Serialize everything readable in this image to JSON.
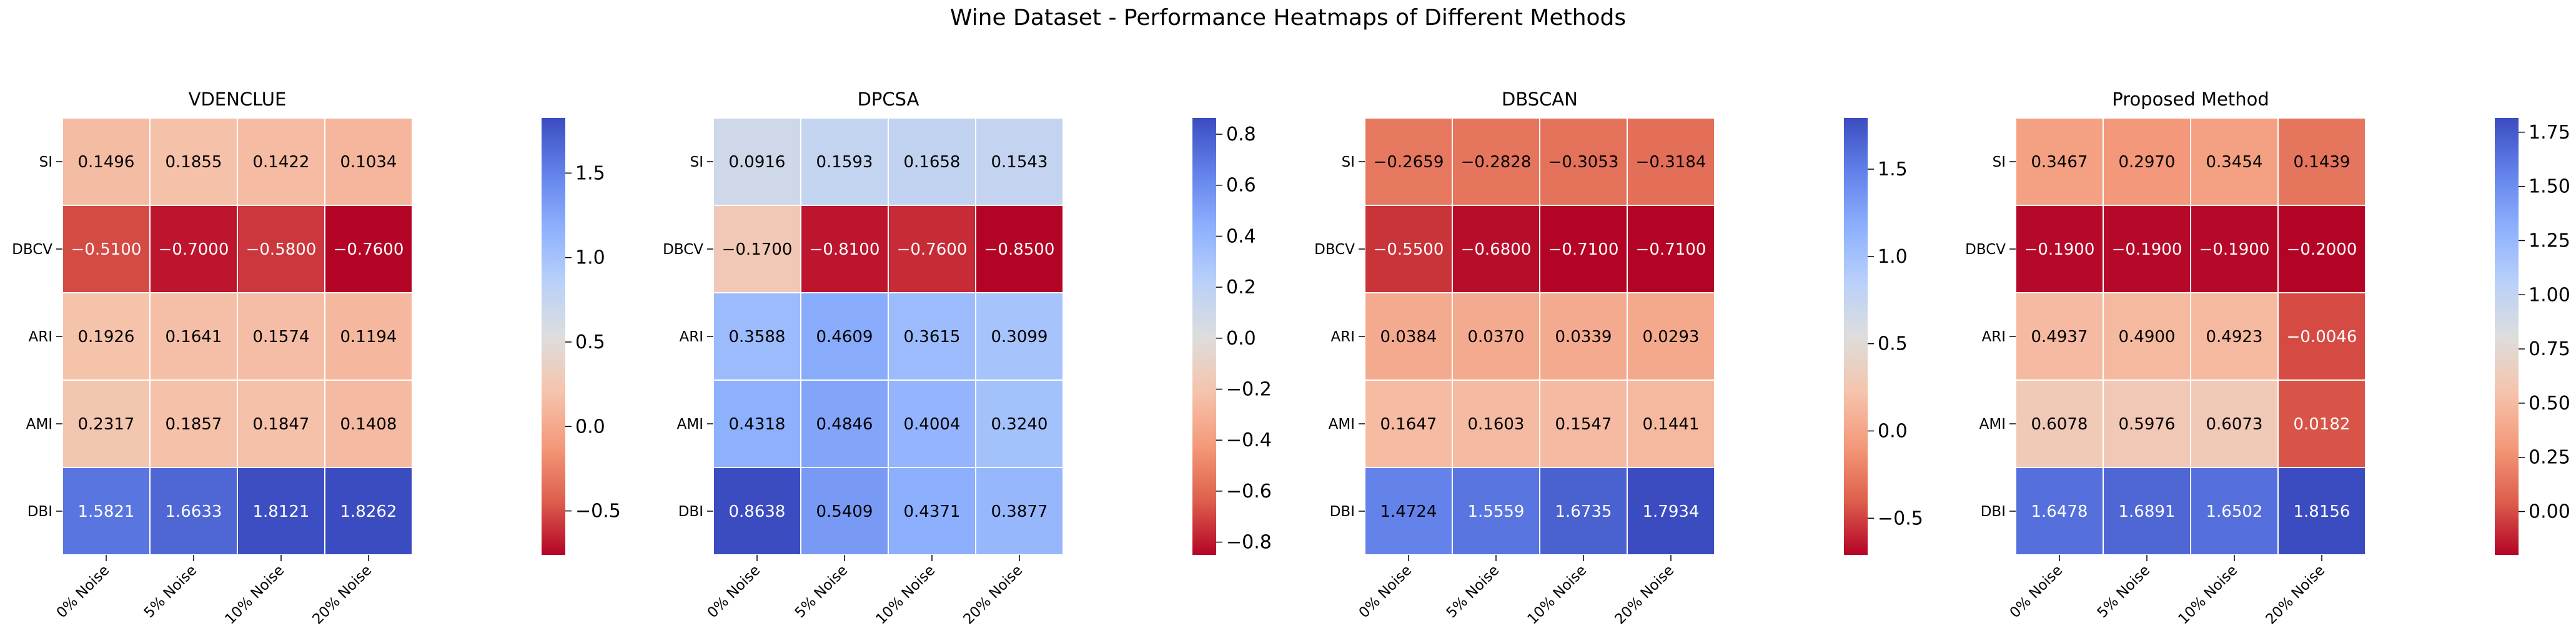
{
  "figure_title": "Wine Dataset - Performance Heatmaps of Different Methods",
  "chart_data": [
    {
      "type": "heatmap",
      "title": "VDENCLUE",
      "row_labels": [
        "SI",
        "DBCV",
        "ARI",
        "AMI",
        "DBI"
      ],
      "col_labels": [
        "0% Noise",
        "5% Noise",
        "10% Noise",
        "20% Noise"
      ],
      "values": [
        [
          0.1496,
          0.1855,
          0.1422,
          0.1034
        ],
        [
          -0.51,
          -0.7,
          -0.58,
          -0.76
        ],
        [
          0.1926,
          0.1641,
          0.1574,
          0.1194
        ],
        [
          0.2317,
          0.1857,
          0.1847,
          0.1408
        ],
        [
          1.5821,
          1.6633,
          1.8121,
          1.8262
        ]
      ],
      "cell_labels": [
        [
          "0.1496",
          "0.1855",
          "0.1422",
          "0.1034"
        ],
        [
          "−0.5100",
          "−0.7000",
          "−0.5800",
          "−0.7600"
        ],
        [
          "0.1926",
          "0.1641",
          "0.1574",
          "0.1194"
        ],
        [
          "0.2317",
          "0.1857",
          "0.1847",
          "0.1408"
        ],
        [
          "1.5821",
          "1.6633",
          "1.8121",
          "1.8262"
        ]
      ],
      "colormap": "coolwarm_r",
      "color_range": [
        -0.76,
        1.8262
      ],
      "colorbar_ticks": [
        1.5,
        1.0,
        0.5,
        0.0,
        -0.5
      ],
      "colorbar_tick_labels": [
        "1.5",
        "1.0",
        "0.5",
        "0.0",
        "−0.5"
      ]
    },
    {
      "type": "heatmap",
      "title": "DPCSA",
      "row_labels": [
        "SI",
        "DBCV",
        "ARI",
        "AMI",
        "DBI"
      ],
      "col_labels": [
        "0% Noise",
        "5% Noise",
        "10% Noise",
        "20% Noise"
      ],
      "values": [
        [
          0.0916,
          0.1593,
          0.1658,
          0.1543
        ],
        [
          -0.17,
          -0.81,
          -0.76,
          -0.85
        ],
        [
          0.3588,
          0.4609,
          0.3615,
          0.3099
        ],
        [
          0.4318,
          0.4846,
          0.4004,
          0.324
        ],
        [
          0.8638,
          0.5409,
          0.4371,
          0.3877
        ]
      ],
      "cell_labels": [
        [
          "0.0916",
          "0.1593",
          "0.1658",
          "0.1543"
        ],
        [
          "−0.1700",
          "−0.8100",
          "−0.7600",
          "−0.8500"
        ],
        [
          "0.3588",
          "0.4609",
          "0.3615",
          "0.3099"
        ],
        [
          "0.4318",
          "0.4846",
          "0.4004",
          "0.3240"
        ],
        [
          "0.8638",
          "0.5409",
          "0.4371",
          "0.3877"
        ]
      ],
      "colormap": "coolwarm_r",
      "color_range": [
        -0.85,
        0.8638
      ],
      "colorbar_ticks": [
        0.8,
        0.6,
        0.4,
        0.2,
        0.0,
        -0.2,
        -0.4,
        -0.6,
        -0.8
      ],
      "colorbar_tick_labels": [
        "0.8",
        "0.6",
        "0.4",
        "0.2",
        "0.0",
        "−0.2",
        "−0.4",
        "−0.6",
        "−0.8"
      ]
    },
    {
      "type": "heatmap",
      "title": "DBSCAN",
      "row_labels": [
        "SI",
        "DBCV",
        "ARI",
        "AMI",
        "DBI"
      ],
      "col_labels": [
        "0% Noise",
        "5% Noise",
        "10% Noise",
        "20% Noise"
      ],
      "values": [
        [
          -0.2659,
          -0.2828,
          -0.3053,
          -0.3184
        ],
        [
          -0.55,
          -0.68,
          -0.71,
          -0.71
        ],
        [
          0.0384,
          0.037,
          0.0339,
          0.0293
        ],
        [
          0.1647,
          0.1603,
          0.1547,
          0.1441
        ],
        [
          1.4724,
          1.5559,
          1.6735,
          1.7934
        ]
      ],
      "cell_labels": [
        [
          "−0.2659",
          "−0.2828",
          "−0.3053",
          "−0.3184"
        ],
        [
          "−0.5500",
          "−0.6800",
          "−0.7100",
          "−0.7100"
        ],
        [
          "0.0384",
          "0.0370",
          "0.0339",
          "0.0293"
        ],
        [
          "0.1647",
          "0.1603",
          "0.1547",
          "0.1441"
        ],
        [
          "1.4724",
          "1.5559",
          "1.6735",
          "1.7934"
        ]
      ],
      "colormap": "coolwarm_r",
      "color_range": [
        -0.71,
        1.7934
      ],
      "colorbar_ticks": [
        1.5,
        1.0,
        0.5,
        0.0,
        -0.5
      ],
      "colorbar_tick_labels": [
        "1.5",
        "1.0",
        "0.5",
        "0.0",
        "−0.5"
      ]
    },
    {
      "type": "heatmap",
      "title": "Proposed Method",
      "row_labels": [
        "SI",
        "DBCV",
        "ARI",
        "AMI",
        "DBI"
      ],
      "col_labels": [
        "0% Noise",
        "5% Noise",
        "10% Noise",
        "20% Noise"
      ],
      "values": [
        [
          0.3467,
          0.297,
          0.3454,
          0.1439
        ],
        [
          -0.19,
          -0.19,
          -0.19,
          -0.2
        ],
        [
          0.4937,
          0.49,
          0.4923,
          -0.0046
        ],
        [
          0.6078,
          0.5976,
          0.6073,
          0.0182
        ],
        [
          1.6478,
          1.6891,
          1.6502,
          1.8156
        ]
      ],
      "cell_labels": [
        [
          "0.3467",
          "0.2970",
          "0.3454",
          "0.1439"
        ],
        [
          "−0.1900",
          "−0.1900",
          "−0.1900",
          "−0.2000"
        ],
        [
          "0.4937",
          "0.4900",
          "0.4923",
          "−0.0046"
        ],
        [
          "0.6078",
          "0.5976",
          "0.6073",
          "0.0182"
        ],
        [
          "1.6478",
          "1.6891",
          "1.6502",
          "1.8156"
        ]
      ],
      "colormap": "coolwarm_r",
      "color_range": [
        -0.2,
        1.8156
      ],
      "colorbar_ticks": [
        1.75,
        1.5,
        1.25,
        1.0,
        0.75,
        0.5,
        0.25,
        0.0
      ],
      "colorbar_tick_labels": [
        "1.75",
        "1.50",
        "1.25",
        "1.00",
        "0.75",
        "0.50",
        "0.25",
        "0.00"
      ]
    }
  ]
}
